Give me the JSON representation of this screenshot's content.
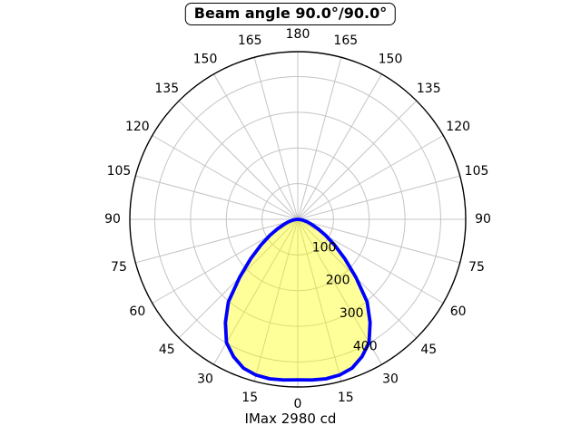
{
  "chart_data": {
    "type": "polar-intensity-curve",
    "title": "Beam angle 90.0°/90.0°",
    "footer": "IMax 2980 cd",
    "angle_axis": {
      "ticks_deg": [
        0,
        15,
        30,
        45,
        60,
        75,
        90,
        105,
        120,
        135,
        150,
        165,
        180
      ],
      "mirrored_both_sides": true,
      "zero_location": "bottom"
    },
    "r_axis": {
      "ticks": [
        100,
        200,
        300,
        400
      ],
      "max": 470,
      "label_angle_deg": 22.5
    },
    "curve": {
      "symmetric": true,
      "angles_deg": [
        0,
        5,
        10,
        15,
        20,
        25,
        30,
        35,
        40,
        45,
        50,
        55,
        60,
        65,
        70,
        75,
        80,
        85,
        90
      ],
      "intensity": [
        450,
        452,
        454,
        452,
        444,
        425,
        399,
        353,
        302,
        230,
        172,
        126,
        90,
        62,
        41,
        27,
        15,
        6,
        0
      ]
    },
    "colors": {
      "curve": "#0000ff",
      "fill": "#ffff00",
      "fill_opacity": 0.4,
      "grid": "#c4c4c4",
      "outer_ring": "#000000",
      "text": "#000000"
    },
    "grid_on": true
  }
}
